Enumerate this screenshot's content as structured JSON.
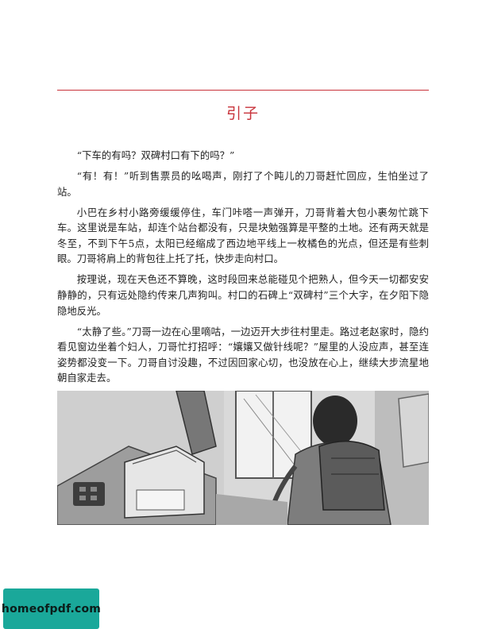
{
  "chapter": {
    "title": "引子"
  },
  "paragraphs": [
    "“下车的有吗？双碑村口有下的吗？”",
    "“有！有！”听到售票员的吆喝声，刚打了个盹儿的刀哥赶忙回应，生怕坐过了站。",
    "小巴在乡村小路旁缓缓停住，车门咔嗒一声弹开，刀哥背着大包小裹匆忙跳下车。这里说是车站，却连个站台都没有，只是块勉强算是平整的土地。还有两天就是冬至，不到下午5点，太阳已经缩成了西边地平线上一枚橘色的光点，但还是有些刺眼。刀哥将肩上的背包往上托了托，快步走向村口。",
    "按理说，现在天色还不算晚，这时段回来总能碰见个把熟人，但今天一切都安安静静的，只有远处隐约传来几声狗叫。村口的石碑上“双碑村”三个大字，在夕阳下隐隐地反光。",
    "“太静了些。”刀哥一边在心里嘀咕，一边迈开大步往村里走。路过老赵家时，隐约看见窗边坐着个妇人，刀哥忙打招呼：“孃孃又做针线呢？”屋里的人没应声，甚至连姿势都没变一下。刀哥自讨没趣，不过因回家心切，也没放在心上，继续大步流星地朝自家走去。"
  ],
  "illustration": {
    "subject": "bus-interior-man-with-backpack"
  },
  "watermark": {
    "text": "homeofpdf.com"
  },
  "colors": {
    "accent": "#c8323a",
    "watermark_bg": "#1aa89a"
  }
}
